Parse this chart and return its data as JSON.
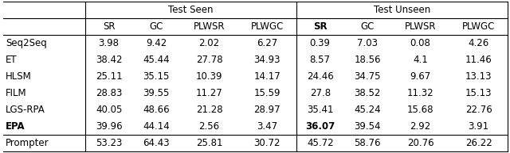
{
  "rows": [
    [
      "Seq2Seq",
      "3.98",
      "9.42",
      "2.02",
      "6.27",
      "0.39",
      "7.03",
      "0.08",
      "4.26"
    ],
    [
      "ET",
      "38.42",
      "45.44",
      "27.78",
      "34.93",
      "8.57",
      "18.56",
      "4.1",
      "11.46"
    ],
    [
      "HLSM",
      "25.11",
      "35.15",
      "10.39",
      "14.17",
      "24.46",
      "34.75",
      "9.67",
      "13.13"
    ],
    [
      "FILM",
      "28.83",
      "39.55",
      "11.27",
      "15.59",
      "27.8",
      "38.52",
      "11.32",
      "15.13"
    ],
    [
      "LGS-RPA",
      "40.05",
      "48.66",
      "21.28",
      "28.97",
      "35.41",
      "45.24",
      "15.68",
      "22.76"
    ],
    [
      "EPA",
      "39.96",
      "44.14",
      "2.56",
      "3.47",
      "36.07",
      "39.54",
      "2.92",
      "3.91"
    ],
    [
      "Prompter",
      "53.23",
      "64.43",
      "25.81",
      "30.72",
      "45.72",
      "58.76",
      "20.76",
      "26.22"
    ]
  ],
  "col_names": [
    "",
    "SR",
    "GC",
    "PLWSR",
    "PLWGC",
    "SR",
    "GC",
    "PLWSR",
    "PLWGC"
  ],
  "figsize": [
    6.4,
    1.93
  ],
  "dpi": 100,
  "fontsize": 8.5,
  "col_widths_rel": [
    1.55,
    0.9,
    0.9,
    1.1,
    1.1,
    0.9,
    0.9,
    1.1,
    1.1
  ]
}
